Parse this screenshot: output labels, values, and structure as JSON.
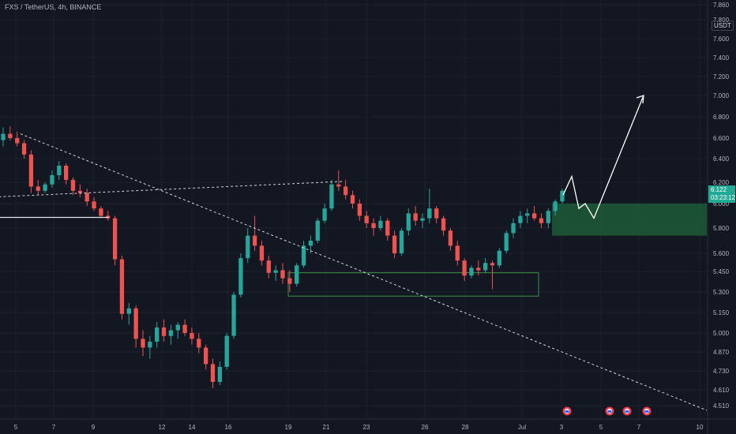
{
  "header": {
    "symbol_line": "FXS / TetherUS, 4h, BINANCE"
  },
  "currency_label": "USDT",
  "last_price": {
    "value": "6.122",
    "countdown": "03:23:12",
    "color": "#22ab94"
  },
  "colors": {
    "up": "#26a69a",
    "down": "#ef5350",
    "zone_support": "#2e7d32",
    "zone_resist": "#f23645",
    "target_zone": "#1e5a37",
    "projection": "#ffffff"
  },
  "chart_data": {
    "type": "candlestick",
    "title": "",
    "xlabel": "",
    "ylabel": "",
    "y_axis_ticks": [
      "4.510",
      "4.610",
      "4.730",
      "4.870",
      "5.000",
      "5.150",
      "5.300",
      "5.450",
      "5.600",
      "5.800",
      "6.000",
      "6.200",
      "6.400",
      "6.600",
      "6.800",
      "7.000",
      "7.200",
      "7.400",
      "7.600",
      "7.800",
      "7.860"
    ],
    "x_axis_ticks": [
      "5",
      "7",
      "9",
      "12",
      "14",
      "16",
      "19",
      "21",
      "23",
      "26",
      "28",
      "Jul",
      "3",
      "5",
      "7",
      "10"
    ],
    "candles": [
      {
        "o": 6.58,
        "h": 6.7,
        "l": 6.52,
        "c": 6.64
      },
      {
        "o": 6.64,
        "h": 6.71,
        "l": 6.58,
        "c": 6.6
      },
      {
        "o": 6.6,
        "h": 6.66,
        "l": 6.52,
        "c": 6.55
      },
      {
        "o": 6.55,
        "h": 6.58,
        "l": 6.4,
        "c": 6.44
      },
      {
        "o": 6.44,
        "h": 6.48,
        "l": 6.1,
        "c": 6.16
      },
      {
        "o": 6.16,
        "h": 6.22,
        "l": 6.08,
        "c": 6.12
      },
      {
        "o": 6.12,
        "h": 6.2,
        "l": 6.1,
        "c": 6.18
      },
      {
        "o": 6.18,
        "h": 6.3,
        "l": 6.15,
        "c": 6.26
      },
      {
        "o": 6.26,
        "h": 6.38,
        "l": 6.22,
        "c": 6.34
      },
      {
        "o": 6.34,
        "h": 6.36,
        "l": 6.18,
        "c": 6.22
      },
      {
        "o": 6.22,
        "h": 6.24,
        "l": 6.08,
        "c": 6.12
      },
      {
        "o": 6.12,
        "h": 6.18,
        "l": 6.06,
        "c": 6.1
      },
      {
        "o": 6.1,
        "h": 6.14,
        "l": 5.98,
        "c": 6.02
      },
      {
        "o": 6.02,
        "h": 6.06,
        "l": 5.94,
        "c": 5.96
      },
      {
        "o": 5.96,
        "h": 5.98,
        "l": 5.88,
        "c": 5.9
      },
      {
        "o": 5.9,
        "h": 5.94,
        "l": 5.86,
        "c": 5.88
      },
      {
        "o": 5.88,
        "h": 5.9,
        "l": 5.5,
        "c": 5.55
      },
      {
        "o": 5.55,
        "h": 5.58,
        "l": 5.1,
        "c": 5.14
      },
      {
        "o": 5.14,
        "h": 5.22,
        "l": 5.06,
        "c": 5.18
      },
      {
        "o": 5.18,
        "h": 5.2,
        "l": 4.9,
        "c": 4.96
      },
      {
        "o": 4.96,
        "h": 5.02,
        "l": 4.84,
        "c": 4.9
      },
      {
        "o": 4.9,
        "h": 4.98,
        "l": 4.82,
        "c": 4.94
      },
      {
        "o": 4.94,
        "h": 5.08,
        "l": 4.9,
        "c": 5.04
      },
      {
        "o": 5.04,
        "h": 5.1,
        "l": 4.94,
        "c": 4.98
      },
      {
        "o": 4.98,
        "h": 5.06,
        "l": 4.92,
        "c": 5.02
      },
      {
        "o": 5.02,
        "h": 5.08,
        "l": 4.96,
        "c": 5.06
      },
      {
        "o": 5.06,
        "h": 5.1,
        "l": 4.98,
        "c": 5.0
      },
      {
        "o": 5.0,
        "h": 5.04,
        "l": 4.92,
        "c": 4.96
      },
      {
        "o": 4.96,
        "h": 5.0,
        "l": 4.86,
        "c": 4.9
      },
      {
        "o": 4.9,
        "h": 4.92,
        "l": 4.74,
        "c": 4.78
      },
      {
        "o": 4.78,
        "h": 4.82,
        "l": 4.62,
        "c": 4.66
      },
      {
        "o": 4.66,
        "h": 4.8,
        "l": 4.64,
        "c": 4.76
      },
      {
        "o": 4.76,
        "h": 5.0,
        "l": 4.74,
        "c": 4.98
      },
      {
        "o": 4.98,
        "h": 5.3,
        "l": 4.96,
        "c": 5.28
      },
      {
        "o": 5.28,
        "h": 5.6,
        "l": 5.26,
        "c": 5.56
      },
      {
        "o": 5.56,
        "h": 5.8,
        "l": 5.52,
        "c": 5.74
      },
      {
        "o": 5.74,
        "h": 5.9,
        "l": 5.62,
        "c": 5.66
      },
      {
        "o": 5.66,
        "h": 5.7,
        "l": 5.5,
        "c": 5.54
      },
      {
        "o": 5.54,
        "h": 5.58,
        "l": 5.4,
        "c": 5.44
      },
      {
        "o": 5.44,
        "h": 5.5,
        "l": 5.38,
        "c": 5.46
      },
      {
        "o": 5.46,
        "h": 5.52,
        "l": 5.36,
        "c": 5.4
      },
      {
        "o": 5.4,
        "h": 5.46,
        "l": 5.3,
        "c": 5.36
      },
      {
        "o": 5.36,
        "h": 5.52,
        "l": 5.34,
        "c": 5.5
      },
      {
        "o": 5.5,
        "h": 5.7,
        "l": 5.48,
        "c": 5.66
      },
      {
        "o": 5.66,
        "h": 5.74,
        "l": 5.6,
        "c": 5.7
      },
      {
        "o": 5.7,
        "h": 5.88,
        "l": 5.68,
        "c": 5.86
      },
      {
        "o": 5.86,
        "h": 6.0,
        "l": 5.84,
        "c": 5.96
      },
      {
        "o": 5.96,
        "h": 6.22,
        "l": 5.94,
        "c": 6.18
      },
      {
        "o": 6.18,
        "h": 6.3,
        "l": 6.12,
        "c": 6.16
      },
      {
        "o": 6.16,
        "h": 6.22,
        "l": 6.04,
        "c": 6.08
      },
      {
        "o": 6.08,
        "h": 6.12,
        "l": 5.96,
        "c": 6.0
      },
      {
        "o": 6.0,
        "h": 6.04,
        "l": 5.86,
        "c": 5.9
      },
      {
        "o": 5.9,
        "h": 5.94,
        "l": 5.8,
        "c": 5.84
      },
      {
        "o": 5.84,
        "h": 5.88,
        "l": 5.74,
        "c": 5.8
      },
      {
        "o": 5.8,
        "h": 5.9,
        "l": 5.78,
        "c": 5.86
      },
      {
        "o": 5.86,
        "h": 5.88,
        "l": 5.7,
        "c": 5.74
      },
      {
        "o": 5.74,
        "h": 5.78,
        "l": 5.56,
        "c": 5.6
      },
      {
        "o": 5.6,
        "h": 5.8,
        "l": 5.58,
        "c": 5.78
      },
      {
        "o": 5.78,
        "h": 5.96,
        "l": 5.74,
        "c": 5.92
      },
      {
        "o": 5.92,
        "h": 5.98,
        "l": 5.82,
        "c": 5.86
      },
      {
        "o": 5.86,
        "h": 5.92,
        "l": 5.8,
        "c": 5.88
      },
      {
        "o": 5.88,
        "h": 6.14,
        "l": 5.84,
        "c": 5.96
      },
      {
        "o": 5.96,
        "h": 5.98,
        "l": 5.84,
        "c": 5.88
      },
      {
        "o": 5.88,
        "h": 5.9,
        "l": 5.74,
        "c": 5.78
      },
      {
        "o": 5.78,
        "h": 5.8,
        "l": 5.62,
        "c": 5.66
      },
      {
        "o": 5.66,
        "h": 5.7,
        "l": 5.5,
        "c": 5.54
      },
      {
        "o": 5.54,
        "h": 5.56,
        "l": 5.38,
        "c": 5.42
      },
      {
        "o": 5.42,
        "h": 5.5,
        "l": 5.4,
        "c": 5.48
      },
      {
        "o": 5.48,
        "h": 5.54,
        "l": 5.42,
        "c": 5.46
      },
      {
        "o": 5.46,
        "h": 5.56,
        "l": 5.44,
        "c": 5.52
      },
      {
        "o": 5.52,
        "h": 5.54,
        "l": 5.32,
        "c": 5.5
      },
      {
        "o": 5.5,
        "h": 5.64,
        "l": 5.48,
        "c": 5.62
      },
      {
        "o": 5.62,
        "h": 5.78,
        "l": 5.6,
        "c": 5.76
      },
      {
        "o": 5.76,
        "h": 5.88,
        "l": 5.72,
        "c": 5.84
      },
      {
        "o": 5.84,
        "h": 5.94,
        "l": 5.8,
        "c": 5.9
      },
      {
        "o": 5.9,
        "h": 5.96,
        "l": 5.84,
        "c": 5.92
      },
      {
        "o": 5.92,
        "h": 5.98,
        "l": 5.86,
        "c": 5.88
      },
      {
        "o": 5.88,
        "h": 5.92,
        "l": 5.8,
        "c": 5.84
      },
      {
        "o": 5.84,
        "h": 5.96,
        "l": 5.8,
        "c": 5.94
      },
      {
        "o": 5.94,
        "h": 6.04,
        "l": 5.9,
        "c": 6.02
      },
      {
        "o": 6.02,
        "h": 6.14,
        "l": 6.0,
        "c": 6.12
      }
    ],
    "annotations": {
      "downtrend_line": {
        "from": {
          "x": "5",
          "y": 6.58
        },
        "to": {
          "x": "10",
          "y": 4.5
        },
        "style": "dashed"
      },
      "resistance_line": {
        "level": 5.9,
        "from": "9",
        "to": "20"
      },
      "support_box": {
        "y_range": [
          5.27,
          5.44
        ],
        "from": "19",
        "to": "3"
      },
      "resistance_box": {
        "y_range": [
          6.2,
          6.3
        ],
        "from": "21",
        "to": "5"
      },
      "upper_dashed_line": {
        "from": {
          "x": "21",
          "y": 6.3
        },
        "to": {
          "x": "5",
          "y": 6.0
        },
        "style": "dashed"
      },
      "target_zone": {
        "y_range": [
          5.74,
          6.0
        ],
        "from": "3",
        "to": "10"
      },
      "projection_path": [
        6.08,
        6.25,
        5.96,
        6.0,
        5.88,
        7.0
      ],
      "event_markers": 4
    }
  }
}
